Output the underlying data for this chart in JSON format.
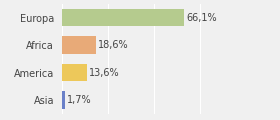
{
  "categories": [
    "Europa",
    "Africa",
    "America",
    "Asia"
  ],
  "values": [
    66.1,
    18.6,
    13.6,
    1.7
  ],
  "labels": [
    "66,1%",
    "18,6%",
    "13,6%",
    "1,7%"
  ],
  "bar_colors": [
    "#b5cb8e",
    "#e8aa78",
    "#edc85a",
    "#6a80c8"
  ],
  "background_color": "#f0f0f0",
  "xlim": [
    0,
    100
  ],
  "label_fontsize": 7,
  "category_fontsize": 7
}
